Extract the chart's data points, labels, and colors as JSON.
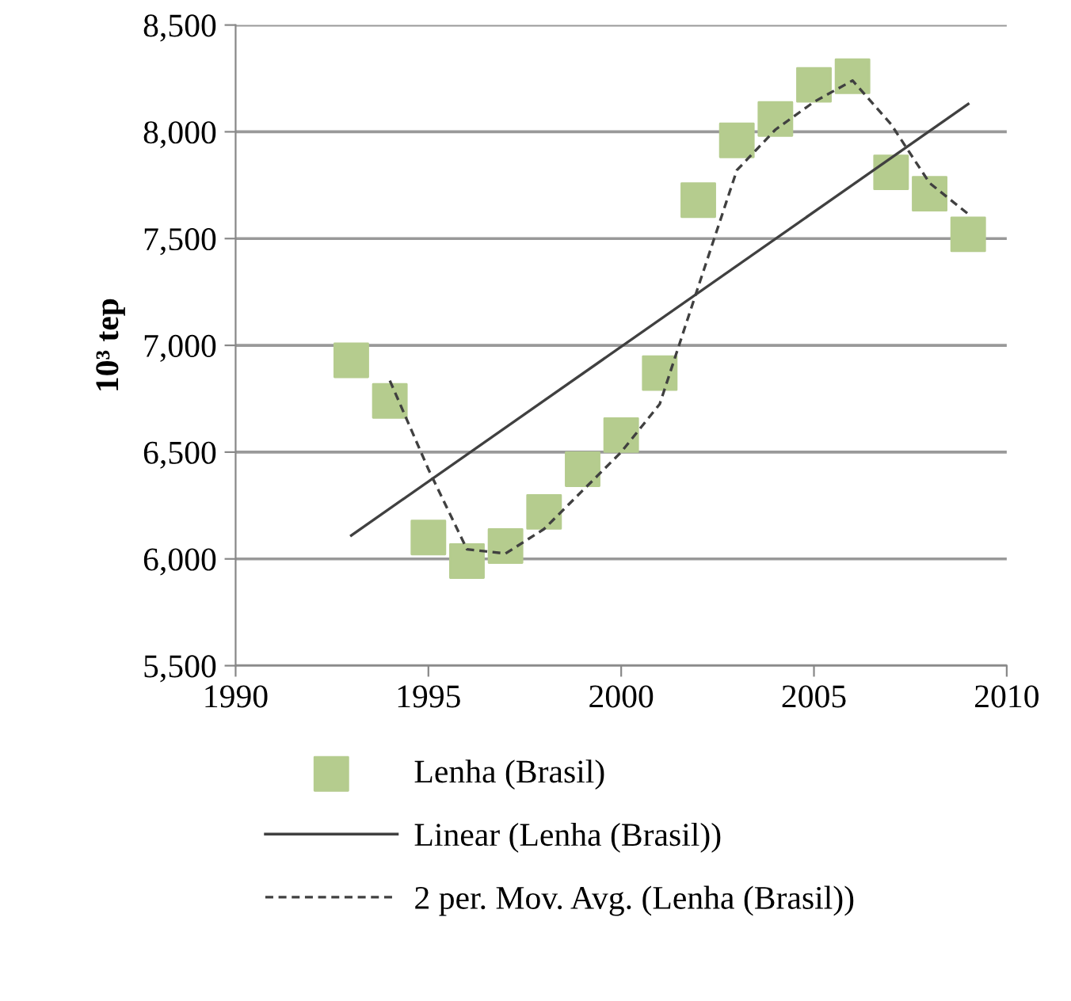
{
  "chart_data": {
    "type": "scatter",
    "ylabel": "10³ tep",
    "xlim": [
      1990,
      2010
    ],
    "xticks": [
      1990,
      1995,
      2000,
      2005,
      2010
    ],
    "ylim": [
      5500,
      8500
    ],
    "yticks": [
      {
        "value": 5500,
        "label": "5,500"
      },
      {
        "value": 6000,
        "label": "6,000"
      },
      {
        "value": 6500,
        "label": "6,500"
      },
      {
        "value": 7000,
        "label": "7,000"
      },
      {
        "value": 7500,
        "label": "7,500"
      },
      {
        "value": 8000,
        "label": "8,000"
      },
      {
        "value": 8500,
        "label": "8,500"
      }
    ],
    "grid": "y",
    "legend": "bottom",
    "series": [
      {
        "name": "Lenha (Brasil)",
        "marker": "square",
        "color": "#b5cc8e",
        "x": [
          1993,
          1994,
          1995,
          1996,
          1997,
          1998,
          1999,
          2000,
          2001,
          2002,
          2003,
          2004,
          2005,
          2006,
          2007,
          2008,
          2009
        ],
        "values": [
          6930,
          6740,
          6100,
          5990,
          6060,
          6220,
          6420,
          6580,
          6870,
          7680,
          7960,
          8060,
          8220,
          8260,
          7810,
          7710,
          7520
        ]
      },
      {
        "name": "Linear (Lenha (Brasil))",
        "type": "line",
        "line_style": "solid",
        "color": "#404040",
        "x": [
          1993,
          2009
        ],
        "values": [
          6110,
          8130
        ]
      },
      {
        "name": "2 per. Mov. Avg. (Lenha (Brasil))",
        "type": "line",
        "line_style": "dashed",
        "color": "#404040",
        "x": [
          1994,
          1995,
          1996,
          1997,
          1998,
          1999,
          2000,
          2001,
          2002,
          2003,
          2004,
          2005,
          2006,
          2007,
          2008,
          2009
        ],
        "values": [
          6835,
          6420,
          6045,
          6025,
          6140,
          6320,
          6500,
          6725,
          7275,
          7820,
          8010,
          8140,
          8240,
          8035,
          7760,
          7615
        ]
      }
    ]
  }
}
